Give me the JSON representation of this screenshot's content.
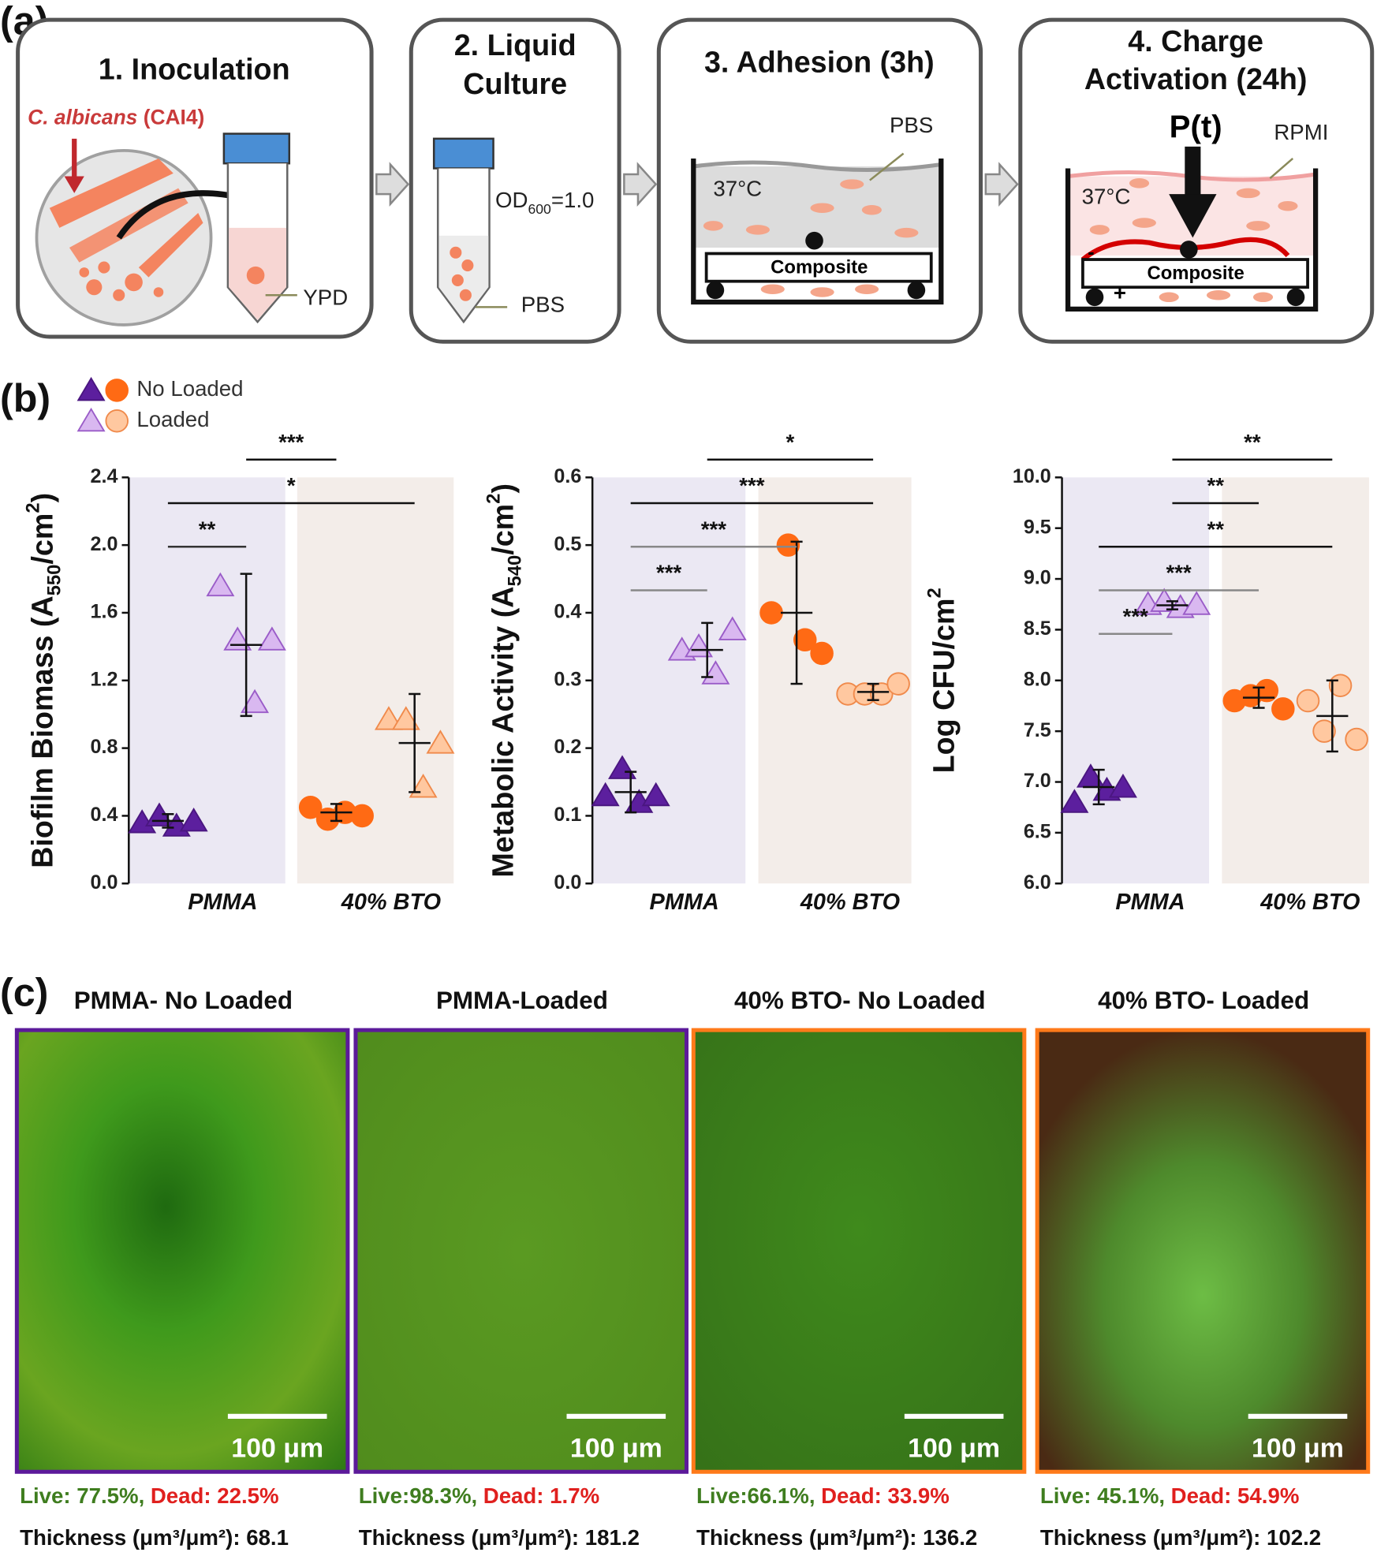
{
  "panel_labels": [
    "(a)",
    "(b)",
    "(c)"
  ],
  "workflow": {
    "steps": [
      [
        "1. Inoculation"
      ],
      [
        "2. Liquid",
        "Culture"
      ],
      [
        "3. Adhesion (3h)"
      ],
      [
        "4. Charge",
        "Activation (24h)"
      ]
    ],
    "labels": {
      "strain": "C. albicans",
      "strain_code": "(CAI4)",
      "ypd": "YPD",
      "od": "OD",
      "od_sub": "600",
      "od_value": "=1.0",
      "pbs_tube": "PBS",
      "temp3": "37°C",
      "pbs3": "PBS",
      "composite3": "Composite",
      "temp4": "37°C",
      "force": "P(t)",
      "rpmi": "RPMI",
      "composite4": "Composite",
      "minus": "-",
      "plus": "+"
    }
  },
  "legend": [
    "No Loaded",
    "Loaded"
  ],
  "chart_data": [
    {
      "type": "scatter",
      "ylabel": {
        "text": "Biofilm Biomass (A",
        "sub": "550",
        "mid": "/cm",
        "sup": "2",
        "end": ")"
      },
      "ylim": [
        0,
        2.4
      ],
      "yticks": [
        {
          "value": 0,
          "label": "0.0"
        },
        0.4,
        0.8,
        1.2,
        1.6,
        {
          "value": 2,
          "label": "2.0"
        },
        2.4
      ],
      "categories": [
        "PMMA",
        "40% BTO"
      ],
      "category_colors": [
        "#ebe8f3",
        "#f3ede9"
      ],
      "series": [
        {
          "category": 0,
          "marker": "triangle",
          "color": "#5c1f9e",
          "edge": "#4a1680",
          "values": [
            0.36,
            0.4,
            0.34,
            0.37
          ],
          "mean": 0.37,
          "error": 0.04
        },
        {
          "category": 0,
          "marker": "triangle",
          "color": "#d9b8f0",
          "edge": "#9a5cc8",
          "values": [
            1.76,
            1.44,
            1.07,
            1.44
          ],
          "mean": 1.41,
          "error": 0.42
        },
        {
          "category": 1,
          "marker": "circle",
          "color": "#ff6a14",
          "edge": "#ff6a14",
          "values": [
            0.45,
            0.38,
            0.42,
            0.4
          ],
          "mean": 0.42,
          "error": 0.05
        },
        {
          "category": 1,
          "marker": "triangle",
          "color": "#ffc8a0",
          "edge": "#f08a4b",
          "values": [
            0.97,
            0.97,
            0.57,
            0.83
          ],
          "mean": 0.83,
          "error": 0.29
        }
      ],
      "significance": [
        {
          "label": "**",
          "from": 0,
          "to": 1,
          "color": "#333"
        },
        {
          "label": "*",
          "from": 0,
          "to": 3,
          "color": "#111"
        },
        {
          "label": "***",
          "from": 1,
          "to": 2,
          "color": "#111"
        }
      ]
    },
    {
      "type": "scatter",
      "ylabel": {
        "text": "Metabolic Activity (A",
        "sub": "540",
        "mid": "/cm",
        "sup": "2",
        "end": ")"
      },
      "ylim": [
        0,
        0.6
      ],
      "yticks": [
        {
          "value": 0,
          "label": "0.0"
        },
        0.1,
        0.2,
        0.3,
        0.4,
        0.5,
        0.6
      ],
      "categories": [
        "PMMA",
        "40% BTO"
      ],
      "category_colors": [
        "#ebe8f3",
        "#f3ede9"
      ],
      "series": [
        {
          "category": 0,
          "marker": "triangle",
          "color": "#5c1f9e",
          "edge": "#4a1680",
          "values": [
            0.13,
            0.17,
            0.12,
            0.13
          ],
          "mean": 0.135,
          "error": 0.03
        },
        {
          "category": 0,
          "marker": "triangle",
          "color": "#d9b8f0",
          "edge": "#9a5cc8",
          "values": [
            0.345,
            0.35,
            0.31,
            0.375
          ],
          "mean": 0.345,
          "error": 0.04
        },
        {
          "category": 1,
          "marker": "circle",
          "color": "#ff6a14",
          "edge": "#ff6a14",
          "values": [
            0.4,
            0.5,
            0.36,
            0.34
          ],
          "mean": 0.4,
          "error": 0.105
        },
        {
          "category": 1,
          "marker": "circle",
          "color": "#ffc8a0",
          "edge": "#f08a4b",
          "values": [
            0.28,
            0.28,
            0.28,
            0.295
          ],
          "mean": 0.283,
          "error": 0.012
        }
      ],
      "significance": [
        {
          "label": "***",
          "from": 0,
          "to": 1,
          "color": "#888"
        },
        {
          "label": "***",
          "from": 0,
          "to": 2,
          "color": "#888"
        },
        {
          "label": "***",
          "from": 0,
          "to": 3,
          "color": "#111"
        },
        {
          "label": "*",
          "from": 1,
          "to": 3,
          "color": "#111"
        }
      ]
    },
    {
      "type": "scatter",
      "ylabel": {
        "text": "Log CFU/cm",
        "sup": "2"
      },
      "ylim": [
        6,
        10
      ],
      "yticks": [
        {
          "value": 6,
          "label": "6.0"
        },
        6.5,
        {
          "value": 7,
          "label": "7.0"
        },
        7.5,
        {
          "value": 8,
          "label": "8.0"
        },
        8.5,
        {
          "value": 9,
          "label": "9.0"
        },
        9.5,
        {
          "value": 10,
          "label": "10.0"
        }
      ],
      "categories": [
        "PMMA",
        "40% BTO"
      ],
      "category_colors": [
        "#ebe8f3",
        "#f3ede9"
      ],
      "series": [
        {
          "category": 0,
          "marker": "triangle",
          "color": "#5c1f9e",
          "edge": "#4a1680",
          "values": [
            6.8,
            7.05,
            6.92,
            6.95
          ],
          "mean": 6.95,
          "error": 0.17
        },
        {
          "category": 0,
          "marker": "triangle",
          "color": "#d9b8f0",
          "edge": "#9a5cc8",
          "values": [
            8.75,
            8.78,
            8.72,
            8.75
          ],
          "mean": 8.74,
          "error": 0.04
        },
        {
          "category": 1,
          "marker": "circle",
          "color": "#ff6a14",
          "edge": "#ff6a14",
          "values": [
            7.8,
            7.85,
            7.9,
            7.72
          ],
          "mean": 7.83,
          "error": 0.1
        },
        {
          "category": 1,
          "marker": "circle",
          "color": "#ffc8a0",
          "edge": "#f08a4b",
          "values": [
            7.8,
            7.5,
            7.95,
            7.42
          ],
          "mean": 7.65,
          "error": 0.35
        }
      ],
      "significance": [
        {
          "label": "***",
          "from": 0,
          "to": 1,
          "color": "#888"
        },
        {
          "label": "***",
          "from": 0,
          "to": 2,
          "color": "#888"
        },
        {
          "label": "**",
          "from": 0,
          "to": 3,
          "color": "#111"
        },
        {
          "label": "**",
          "from": 1,
          "to": 2,
          "color": "#111"
        },
        {
          "label": "**",
          "from": 1,
          "to": 3,
          "color": "#111"
        }
      ]
    }
  ],
  "micrographs": [
    {
      "title": "PMMA- No Loaded",
      "border": "#5c1a9a",
      "scale": "100 μm",
      "live": "Live: 77.5%,",
      "dead": "Dead: 22.5%",
      "thickness": "Thickness (μm³/μm²): 68.1"
    },
    {
      "title": "PMMA-Loaded",
      "border": "#5c1a9a",
      "scale": "100 μm",
      "live": "Live:98.3%,",
      "dead": "Dead: 1.7%",
      "thickness": "Thickness (μm³/μm²): 181.2"
    },
    {
      "title": "40% BTO- No Loaded",
      "border": "#ff7a1a",
      "scale": "100 μm",
      "live": "Live:66.1%,",
      "dead": "Dead: 33.9%",
      "thickness": "Thickness (μm³/μm²): 136.2"
    },
    {
      "title": "40% BTO- Loaded",
      "border": "#ff7a1a",
      "scale": "100 μm",
      "live": "Live: 45.1%,",
      "dead": "Dead: 54.9%",
      "thickness": "Thickness (μm³/μm²): 102.2"
    }
  ]
}
